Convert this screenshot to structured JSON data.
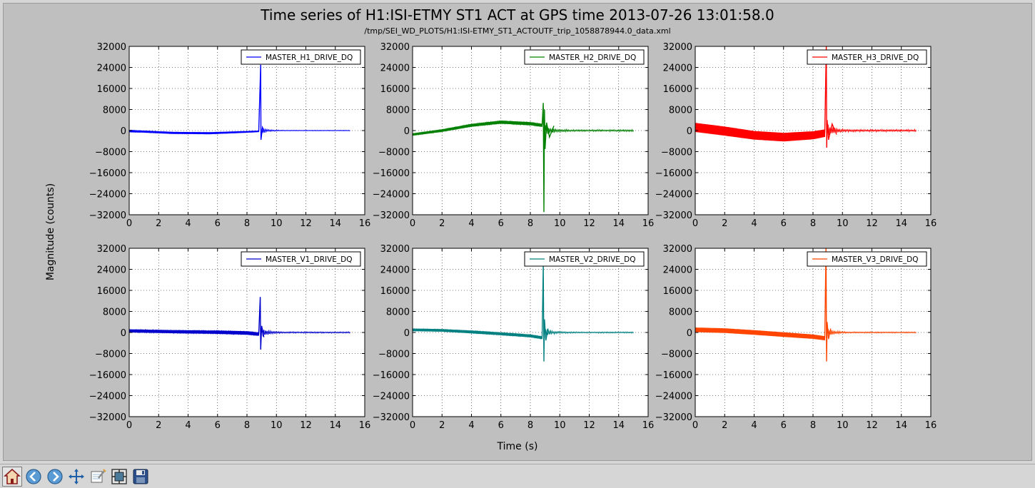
{
  "figure": {
    "title": "Time series of H1:ISI-ETMY ST1 ACT at GPS time 2013-07-26 13:01:58.0",
    "subtitle": "/tmp/SEI_WD_PLOTS/H1:ISI-ETMY_ST1_ACTOUTF_trip_1058878944.0_data.xml",
    "xlabel": "Time (s)",
    "ylabel": "Magnitude (counts)"
  },
  "toolbar": {
    "buttons": [
      {
        "name": "home-icon"
      },
      {
        "name": "back-arrow-icon"
      },
      {
        "name": "forward-arrow-icon"
      },
      {
        "name": "pan-icon"
      },
      {
        "name": "zoom-icon"
      },
      {
        "name": "subplots-config-icon"
      },
      {
        "name": "save-icon"
      }
    ]
  },
  "chart_data": [
    {
      "type": "line",
      "legend": "MASTER_H1_DRIVE_DQ",
      "color": "#0000ff",
      "xlim": [
        0,
        16
      ],
      "ylim": [
        -32000,
        32000
      ],
      "xticks": [
        "0",
        "2",
        "4",
        "6",
        "8",
        "10",
        "12",
        "14",
        "16"
      ],
      "yticks": [
        "32000",
        "24000",
        "16000",
        "8000",
        "0",
        "−8000",
        "−16000",
        "−24000",
        "−32000"
      ],
      "grid": true,
      "legend_position": "top-right",
      "band": [
        [
          0,
          -200,
          600
        ],
        [
          1,
          -400,
          500
        ],
        [
          3,
          -900,
          500
        ],
        [
          5.5,
          -1000,
          500
        ],
        [
          7.5,
          -600,
          400
        ],
        [
          8.8,
          -300,
          300
        ]
      ],
      "spikes": [
        [
          8.93,
          25000
        ],
        [
          8.95,
          -3500
        ],
        [
          9.05,
          1200
        ],
        [
          9.2,
          -800
        ]
      ],
      "tail": {
        "start": 9.0,
        "end": 15.0,
        "amp": 800,
        "decay": 0.5,
        "base": 0
      }
    },
    {
      "type": "line",
      "legend": "MASTER_H2_DRIVE_DQ",
      "color": "#008000",
      "xlim": [
        0,
        16
      ],
      "ylim": [
        -32000,
        32000
      ],
      "xticks": [
        "0",
        "2",
        "4",
        "6",
        "8",
        "10",
        "12",
        "14",
        "16"
      ],
      "yticks": [
        "32000",
        "24000",
        "16000",
        "8000",
        "0",
        "−8000",
        "−16000",
        "−24000",
        "−32000"
      ],
      "grid": true,
      "legend_position": "top-right",
      "band": [
        [
          0,
          -1500,
          600
        ],
        [
          2,
          0,
          700
        ],
        [
          4,
          2000,
          800
        ],
        [
          6,
          3200,
          900
        ],
        [
          8,
          2600,
          900
        ],
        [
          8.8,
          2000,
          900
        ]
      ],
      "spikes": [
        [
          8.88,
          10500
        ],
        [
          8.92,
          -31000
        ],
        [
          8.96,
          8000
        ],
        [
          9.0,
          -7000
        ],
        [
          9.1,
          3000
        ],
        [
          9.3,
          -2500
        ],
        [
          9.6,
          1800
        ]
      ],
      "tail": {
        "start": 9.0,
        "end": 15.0,
        "amp": 2200,
        "decay": 0.4,
        "base": 0
      }
    },
    {
      "type": "line",
      "legend": "MASTER_H3_DRIVE_DQ",
      "color": "#ff0000",
      "xlim": [
        0,
        16
      ],
      "ylim": [
        -32000,
        32000
      ],
      "xticks": [
        "0",
        "2",
        "4",
        "6",
        "8",
        "10",
        "12",
        "14",
        "16"
      ],
      "yticks": [
        "32000",
        "24000",
        "16000",
        "8000",
        "0",
        "−8000",
        "−16000",
        "−24000",
        "−32000"
      ],
      "grid": true,
      "legend_position": "top-right",
      "band": [
        [
          0,
          1200,
          3200
        ],
        [
          2,
          -200,
          3200
        ],
        [
          4,
          -1800,
          3000
        ],
        [
          6,
          -2500,
          3000
        ],
        [
          8,
          -1800,
          2800
        ],
        [
          8.8,
          -1000,
          2600
        ]
      ],
      "spikes": [
        [
          8.9,
          32000
        ],
        [
          8.93,
          -6500
        ],
        [
          8.96,
          4000
        ],
        [
          9.05,
          -3500
        ],
        [
          9.3,
          2500
        ],
        [
          9.6,
          -1500
        ]
      ],
      "tail": {
        "start": 9.0,
        "end": 15.0,
        "amp": 2500,
        "decay": 0.4,
        "base": 0
      }
    },
    {
      "type": "line",
      "legend": "MASTER_V1_DRIVE_DQ",
      "color": "#0000cc",
      "xlim": [
        0,
        16
      ],
      "ylim": [
        -32000,
        32000
      ],
      "xticks": [
        "0",
        "2",
        "4",
        "6",
        "8",
        "10",
        "12",
        "14",
        "16"
      ],
      "yticks": [
        "32000",
        "24000",
        "16000",
        "8000",
        "0",
        "−8000",
        "−16000",
        "−24000",
        "−32000"
      ],
      "grid": true,
      "legend_position": "top-right",
      "band": [
        [
          0,
          600,
          900
        ],
        [
          3,
          300,
          900
        ],
        [
          6,
          100,
          1000
        ],
        [
          8,
          -200,
          1100
        ],
        [
          8.8,
          -600,
          1000
        ]
      ],
      "spikes": [
        [
          8.9,
          13500
        ],
        [
          8.93,
          -6500
        ],
        [
          9.0,
          2500
        ],
        [
          9.15,
          -1800
        ]
      ],
      "tail": {
        "start": 9.0,
        "end": 15.0,
        "amp": 1600,
        "decay": 0.5,
        "base": 0
      }
    },
    {
      "type": "line",
      "legend": "MASTER_V2_DRIVE_DQ",
      "color": "#008080",
      "xlim": [
        0,
        16
      ],
      "ylim": [
        -32000,
        32000
      ],
      "xticks": [
        "0",
        "2",
        "4",
        "6",
        "8",
        "10",
        "12",
        "14",
        "16"
      ],
      "yticks": [
        "32000",
        "24000",
        "16000",
        "8000",
        "0",
        "−8000",
        "−16000",
        "−24000",
        "−32000"
      ],
      "grid": true,
      "legend_position": "top-right",
      "band": [
        [
          0,
          1000,
          700
        ],
        [
          2,
          800,
          700
        ],
        [
          4,
          200,
          800
        ],
        [
          6,
          -500,
          800
        ],
        [
          8,
          -1300,
          800
        ],
        [
          8.8,
          -2000,
          800
        ]
      ],
      "spikes": [
        [
          8.88,
          26000
        ],
        [
          8.92,
          -11000
        ],
        [
          8.96,
          5000
        ],
        [
          9.05,
          -3000
        ],
        [
          9.2,
          1500
        ]
      ],
      "tail": {
        "start": 9.0,
        "end": 15.0,
        "amp": 1500,
        "decay": 0.5,
        "base": 0
      }
    },
    {
      "type": "line",
      "legend": "MASTER_V3_DRIVE_DQ",
      "color": "#ff4500",
      "xlim": [
        0,
        16
      ],
      "ylim": [
        -32000,
        32000
      ],
      "xticks": [
        "0",
        "2",
        "4",
        "6",
        "8",
        "10",
        "12",
        "14",
        "16"
      ],
      "yticks": [
        "32000",
        "24000",
        "16000",
        "8000",
        "0",
        "−8000",
        "−16000",
        "−24000",
        "−32000"
      ],
      "grid": true,
      "legend_position": "top-right",
      "band": [
        [
          0,
          1000,
          1500
        ],
        [
          2,
          700,
          1500
        ],
        [
          4,
          0,
          1500
        ],
        [
          6,
          -800,
          1500
        ],
        [
          8,
          -1600,
          1400
        ],
        [
          8.8,
          -2200,
          1300
        ]
      ],
      "spikes": [
        [
          8.88,
          32000
        ],
        [
          8.92,
          -11000
        ],
        [
          8.96,
          4000
        ],
        [
          9.05,
          -2500
        ],
        [
          9.2,
          1500
        ]
      ],
      "tail": {
        "start": 9.0,
        "end": 15.0,
        "amp": 1300,
        "decay": 0.5,
        "base": 0
      }
    }
  ]
}
